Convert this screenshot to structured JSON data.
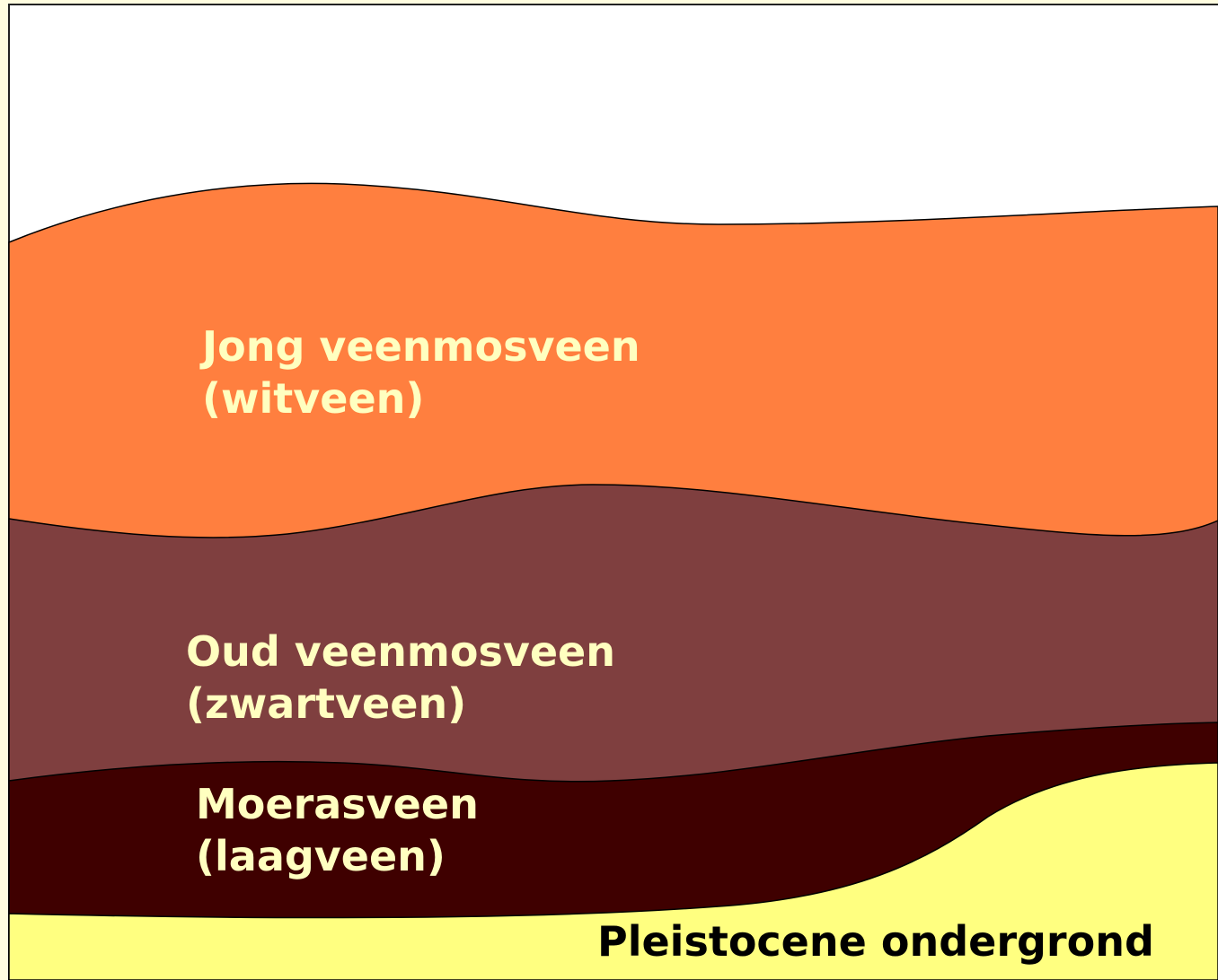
{
  "layers": [
    {
      "lines": [
        "Jong veenmosveen",
        "(witveen)"
      ]
    },
    {
      "lines": [
        "Oud veenmosveen",
        "(zwartveen)"
      ]
    },
    {
      "lines": [
        "Moerasveen",
        "(laagveen)"
      ]
    }
  ],
  "base": "Pleistocene ondergrond"
}
